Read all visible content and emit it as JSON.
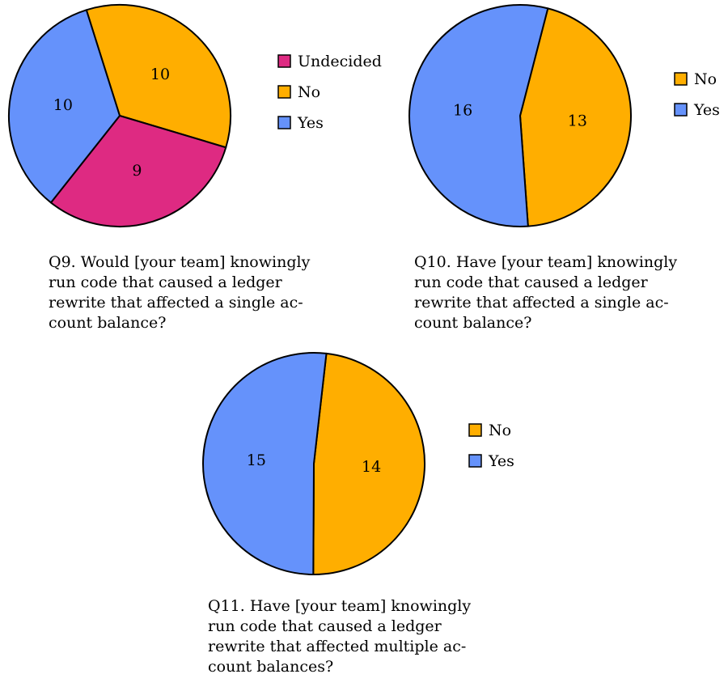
{
  "colors": {
    "Undecided": "#de2a82",
    "No": "#ffae00",
    "Yes": "#6592fb",
    "outline": "#000000"
  },
  "chart_data": [
    {
      "type": "pie",
      "id": "q9",
      "slices": [
        {
          "label": "No",
          "value": 10
        },
        {
          "label": "Undecided",
          "value": 9
        },
        {
          "label": "Yes",
          "value": 10
        }
      ],
      "legend": [
        "Undecided",
        "No",
        "Yes"
      ],
      "caption_lines": [
        "Q9. Would [your team] knowingly",
        "run code that caused a ledger",
        "rewrite that affected a single ac-",
        "count balance?"
      ]
    },
    {
      "type": "pie",
      "id": "q10",
      "slices": [
        {
          "label": "No",
          "value": 13
        },
        {
          "label": "Yes",
          "value": 16
        }
      ],
      "legend": [
        "No",
        "Yes"
      ],
      "caption_lines": [
        "Q10. Have [your team] knowingly",
        "run code that caused a ledger",
        "rewrite that affected a single ac-",
        "count balance?"
      ]
    },
    {
      "type": "pie",
      "id": "q11",
      "slices": [
        {
          "label": "No",
          "value": 14
        },
        {
          "label": "Yes",
          "value": 15
        }
      ],
      "legend": [
        "No",
        "Yes"
      ],
      "caption_lines": [
        "Q11. Have [your team] knowingly",
        "run code that caused a ledger",
        "rewrite that affected multiple ac-",
        "count balances?"
      ]
    }
  ]
}
